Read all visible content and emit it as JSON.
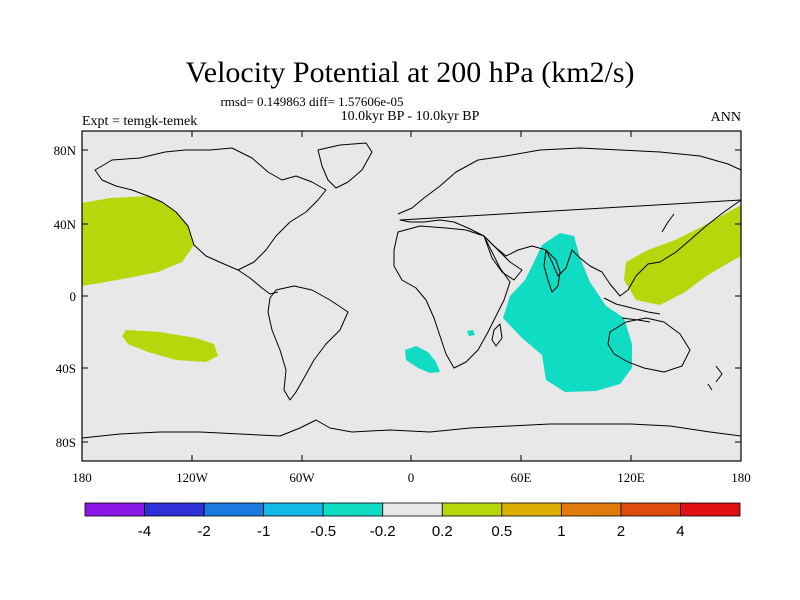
{
  "title": "Velocity Potential at 200 hPa (km2/s)",
  "stats": "rmsd= 0.149863 diff= 1.57606e-05",
  "left_label": "Expt = temgk-temek",
  "center_label": "10.0kyr BP - 10.0kyr BP",
  "right_label": "ANN",
  "lat_ticks": [
    "80N",
    "40N",
    "0",
    "40S",
    "80S"
  ],
  "lon_ticks": [
    "180",
    "120W",
    "60W",
    "0",
    "60E",
    "120E",
    "180"
  ],
  "colorbar": {
    "colors": [
      "#8a17e8",
      "#3030d8",
      "#1a7ae0",
      "#12b8e6",
      "#10dcc4",
      "#e8e8e8",
      "#b8d60c",
      "#dcaf06",
      "#e07a0c",
      "#e04a0c",
      "#e01010"
    ],
    "labels": [
      "-4",
      "-2",
      "-1",
      "-0.5",
      "-0.2",
      "0.2",
      "0.5",
      "1",
      "2",
      "4"
    ]
  },
  "field_colors": {
    "background": "#e8e8e8",
    "positive": "#b8d60c",
    "negative": "#10dcc4"
  }
}
